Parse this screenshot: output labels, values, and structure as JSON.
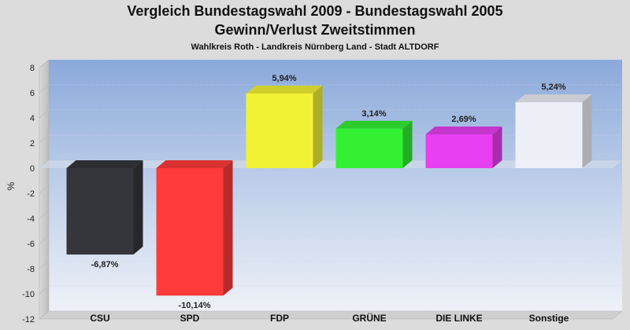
{
  "chart_data": {
    "type": "bar",
    "title": "Vergleich Bundestagswahl 2009 - Bundestagswahl 2005",
    "subtitle": "Gewinn/Verlust Zweitstimmen",
    "subsubtitle": "Wahlkreis Roth - Landkreis Nürnberg Land - Stadt ALTDORF",
    "ylabel": "%",
    "xlabel": "",
    "ylim": [
      -12,
      8
    ],
    "yticks": [
      8,
      6,
      4,
      2,
      0,
      -2,
      -4,
      -6,
      -8,
      -10,
      -12
    ],
    "categories": [
      "CSU",
      "SPD",
      "FDP",
      "GRÜNE",
      "DIE LINKE",
      "Sonstige"
    ],
    "values": [
      -6.87,
      -10.14,
      5.94,
      3.14,
      2.69,
      5.24
    ],
    "value_labels": [
      "-6,87%",
      "-10,14%",
      "5,94%",
      "3,14%",
      "2,69%",
      "5,24%"
    ],
    "colors": [
      "#34363b",
      "#ff3b3b",
      "#f2f235",
      "#33f033",
      "#e83ff0",
      "#eef0f8"
    ],
    "grid": true,
    "legend": "none"
  }
}
